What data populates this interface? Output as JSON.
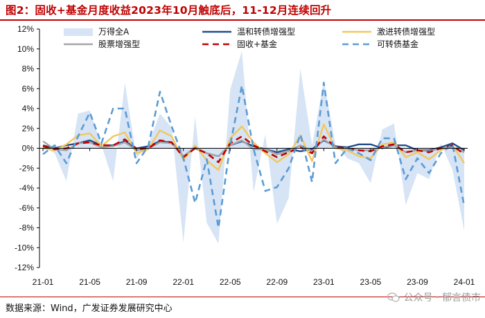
{
  "figure": {
    "title": "图2：固收+基金月度收益2023年10月触底后，11-12月连续回升",
    "source": "数据来源：Wind，广发证券发展研究中心",
    "watermark": "公众号 · 郁言债市"
  },
  "chart_data": {
    "type": "line",
    "title": "图2：固收+基金月度收益2023年10月触底后，11-12月连续回升",
    "xlabel": "",
    "ylabel": "",
    "ylim": [
      -12,
      12
    ],
    "yticks": [
      12,
      10,
      8,
      6,
      4,
      2,
      0,
      -2,
      -4,
      -6,
      -8,
      -10,
      -12
    ],
    "ytick_labels": [
      "12%",
      "10%",
      "8%",
      "6%",
      "4%",
      "2%",
      "0%",
      "-2%",
      "-4%",
      "-6%",
      "-8%",
      "-10%",
      "-12%"
    ],
    "x": [
      "21-01",
      "21-02",
      "21-03",
      "21-04",
      "21-05",
      "21-06",
      "21-07",
      "21-08",
      "21-09",
      "21-10",
      "21-11",
      "21-12",
      "22-01",
      "22-02",
      "22-03",
      "22-04",
      "22-05",
      "22-06",
      "22-07",
      "22-08",
      "22-09",
      "22-10",
      "22-11",
      "22-12",
      "23-01",
      "23-02",
      "23-03",
      "23-04",
      "23-05",
      "23-06",
      "23-07",
      "23-08",
      "23-09",
      "23-10",
      "23-11",
      "23-12",
      "24-01"
    ],
    "xtick_labels": [
      "21-01",
      "21-05",
      "21-09",
      "22-01",
      "22-05",
      "22-09",
      "23-01",
      "23-05",
      "23-09",
      "24-01"
    ],
    "legend_location": "top",
    "series": [
      {
        "name": "万得全A",
        "style": "area",
        "color": "#d6e4f5",
        "values": [
          0.2,
          -0.5,
          -3.3,
          3.5,
          3.8,
          0.3,
          -3.3,
          6.6,
          -1.0,
          0.4,
          3.5,
          2.1,
          -9.5,
          3.2,
          -7.5,
          -9.6,
          5.9,
          9.8,
          -4.4,
          1.4,
          -7.6,
          -5.0,
          8.0,
          0.3,
          6.8,
          0.4,
          -1.0,
          -1.5,
          -3.5,
          1.9,
          2.5,
          -5.7,
          -2.5,
          -3.1,
          0.5,
          -2.2,
          -8.3
        ]
      },
      {
        "name": "温和转债增强型",
        "style": "solid",
        "color": "#1f4e8c",
        "values": [
          0.3,
          0.0,
          0.3,
          0.5,
          0.8,
          0.3,
          0.3,
          0.7,
          0.0,
          0.2,
          0.7,
          0.6,
          -0.8,
          0.0,
          -0.5,
          -0.8,
          0.3,
          0.7,
          0.2,
          -0.1,
          -0.4,
          -0.1,
          -0.3,
          -0.1,
          0.8,
          0.2,
          0.1,
          0.4,
          0.4,
          0.0,
          0.3,
          0.3,
          -0.2,
          -0.2,
          0.1,
          0.5,
          -0.2
        ]
      },
      {
        "name": "激进转债增强型",
        "style": "solid",
        "color": "#f2c75c",
        "values": [
          0.0,
          -0.2,
          0.4,
          1.3,
          1.5,
          0.2,
          1.2,
          1.6,
          -0.5,
          -0.1,
          1.8,
          1.2,
          -1.2,
          0.3,
          -1.2,
          -2.2,
          1.0,
          2.2,
          0.6,
          -0.5,
          -1.4,
          -0.6,
          1.3,
          -1.3,
          2.4,
          0.0,
          -0.2,
          -0.8,
          -1.0,
          0.4,
          0.6,
          -0.9,
          -0.4,
          -1.1,
          -0.2,
          0.3,
          -1.5
        ]
      },
      {
        "name": "股票增强型",
        "style": "solid",
        "color": "#a6a6a6",
        "values": [
          0.7,
          -0.1,
          -0.2,
          0.5,
          0.6,
          0.1,
          0.2,
          0.6,
          -0.2,
          0.0,
          0.6,
          0.5,
          -0.8,
          0.1,
          -0.5,
          -0.8,
          0.3,
          0.8,
          -0.1,
          -0.1,
          -0.6,
          -0.3,
          0.3,
          -0.3,
          0.9,
          0.1,
          0.0,
          -0.2,
          -0.2,
          0.1,
          0.3,
          -0.4,
          -0.2,
          -0.3,
          0.0,
          0.1,
          -0.4
        ]
      },
      {
        "name": "固收+基金",
        "style": "dashed",
        "color": "#c00000",
        "values": [
          0.2,
          -0.1,
          0.0,
          0.5,
          0.6,
          0.3,
          0.3,
          0.9,
          -0.1,
          0.0,
          0.8,
          0.6,
          -0.9,
          0.0,
          -0.5,
          -1.4,
          0.5,
          1.2,
          0.3,
          -0.3,
          -0.9,
          -0.4,
          0.1,
          -0.5,
          1.2,
          0.1,
          0.0,
          -0.2,
          -0.3,
          0.2,
          0.4,
          -0.4,
          -0.2,
          -0.4,
          0.0,
          0.3,
          -0.6
        ]
      },
      {
        "name": "可转债基金",
        "style": "dashed",
        "color": "#5b9bd5",
        "values": [
          -0.6,
          0.3,
          -1.5,
          1.2,
          3.6,
          0.5,
          4.0,
          4.0,
          -1.5,
          0.2,
          5.7,
          2.2,
          -1.0,
          -5.5,
          -1.1,
          -8.0,
          0.3,
          6.3,
          -0.1,
          -4.3,
          -3.9,
          -2.0,
          1.4,
          -3.4,
          6.6,
          -1.5,
          0.0,
          -0.5,
          -1.2,
          1.0,
          1.0,
          -3.1,
          -1.0,
          -2.5,
          -0.5,
          0.4,
          -5.8
        ]
      }
    ]
  }
}
